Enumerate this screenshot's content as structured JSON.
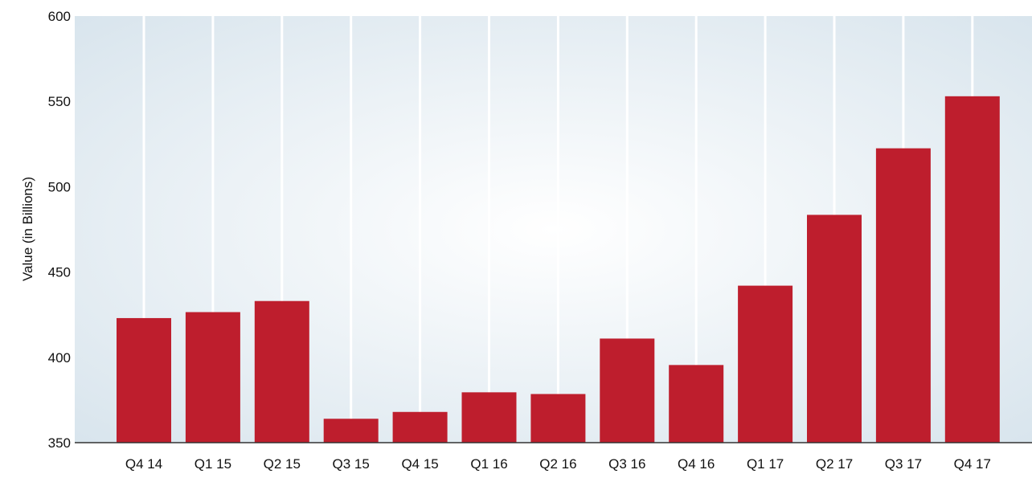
{
  "chart_data": {
    "type": "bar",
    "categories": [
      "Q4 14",
      "Q1 15",
      "Q2 15",
      "Q3 15",
      "Q4 15",
      "Q1 16",
      "Q2 16",
      "Q3 16",
      "Q4 16",
      "Q1 17",
      "Q2 17",
      "Q3 17",
      "Q4 17"
    ],
    "values": [
      423,
      426.5,
      433,
      364,
      368,
      379.5,
      378.5,
      411,
      395.5,
      442,
      483.5,
      522.5,
      553
    ],
    "ylabel": "Value (in Billions)",
    "xlabel": "",
    "ylim": [
      350,
      600
    ],
    "yticks": [
      "350",
      "400",
      "450",
      "500",
      "550",
      "600"
    ],
    "grid": "vertical",
    "colors": {
      "bar": "#be1e2d",
      "grid": "#ffffff",
      "plot_background_center": "#ffffff",
      "plot_background_edge": "#d6e3ec",
      "axis": "#333333"
    }
  }
}
